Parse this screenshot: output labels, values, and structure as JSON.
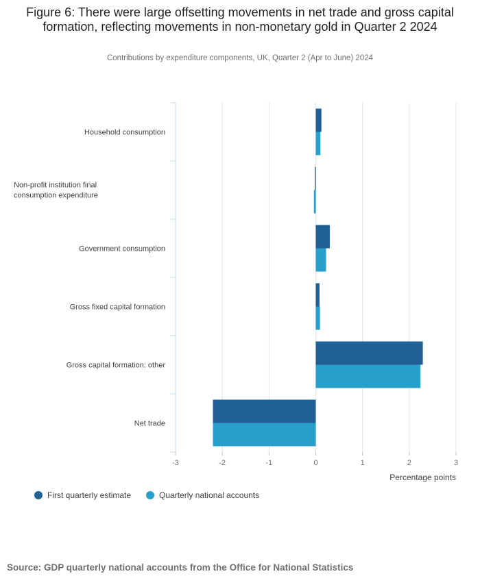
{
  "chart_data": {
    "type": "bar",
    "orientation": "horizontal",
    "title": "Figure 6: There were large offsetting movements in net trade and gross capital formation, reflecting movements in non-monetary gold in Quarter 2 2024",
    "subtitle": "Contributions by expenditure components, UK, Quarter 2 (Apr to June) 2024",
    "categories": [
      "Household consumption",
      "Non-profit institution final consumption expenditure",
      "Government consumption",
      "Gross fixed capital formation",
      "Gross capital formation: other",
      "Net trade"
    ],
    "series": [
      {
        "name": "First quarterly estimate",
        "color": "#206095",
        "values": [
          0.12,
          -0.02,
          0.3,
          0.08,
          2.29,
          -2.2
        ]
      },
      {
        "name": "Quarterly national accounts",
        "color": "#27a0cc",
        "values": [
          0.1,
          -0.04,
          0.22,
          0.09,
          2.24,
          -2.2
        ]
      }
    ],
    "xlabel": "Percentage points",
    "xlim": [
      -3,
      3
    ],
    "xticks": [
      "-3",
      "-2",
      "-1",
      "0",
      "1",
      "2",
      "3"
    ],
    "grid": true,
    "legend_position": "bottom-left"
  },
  "source": "Source: GDP quarterly national accounts from the Office for National Statistics"
}
